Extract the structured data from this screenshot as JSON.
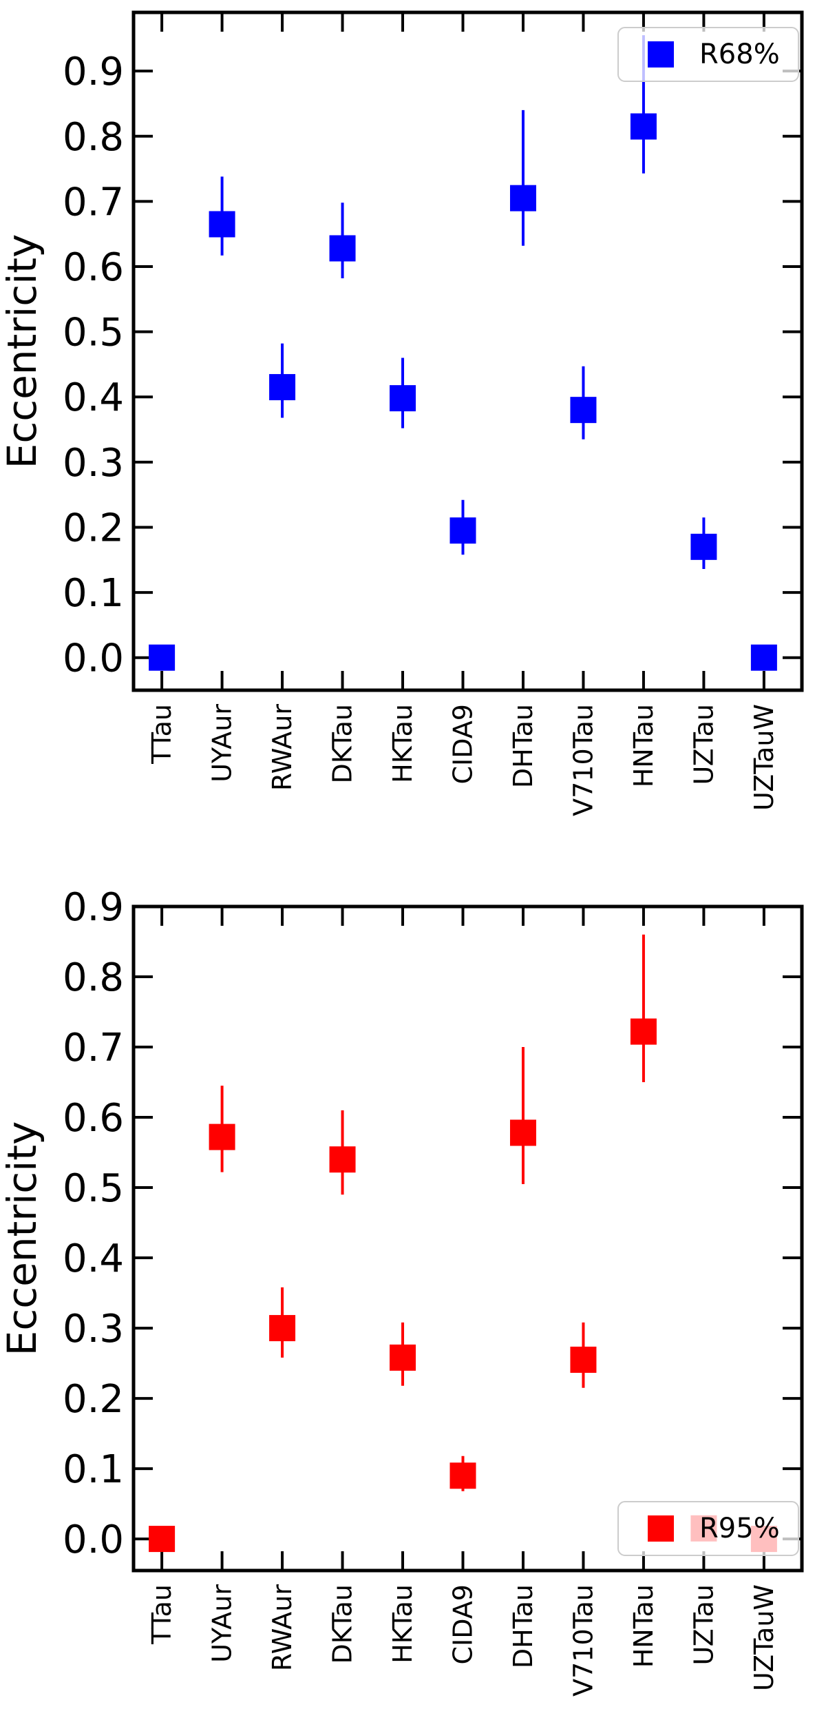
{
  "chart_data": [
    {
      "type": "scatter",
      "ylabel": "Eccentricity",
      "xlabel": "",
      "categories": [
        "TTau",
        "UYAur",
        "RWAur",
        "DKTau",
        "HKTau",
        "CIDA9",
        "DHTau",
        "V710Tau",
        "HNTau",
        "UZTau",
        "UZTauW"
      ],
      "ylim": [
        -0.05,
        0.99
      ],
      "yticks": [
        "0.0",
        "0.1",
        "0.2",
        "0.3",
        "0.4",
        "0.5",
        "0.6",
        "0.7",
        "0.8",
        "0.9"
      ],
      "grid": false,
      "legend_position": "top-right",
      "series": [
        {
          "name": "R68%",
          "color": "#0000ff",
          "marker": "square",
          "values": [
            0.0,
            0.665,
            0.415,
            0.628,
            0.398,
            0.195,
            0.705,
            0.38,
            0.815,
            0.17,
            0.0
          ],
          "err_low": [
            0.0,
            0.617,
            0.368,
            0.582,
            0.352,
            0.158,
            0.632,
            0.335,
            0.743,
            0.136,
            0.0
          ],
          "err_high": [
            0.0,
            0.738,
            0.482,
            0.698,
            0.46,
            0.242,
            0.84,
            0.447,
            0.955,
            0.215,
            0.0
          ]
        }
      ]
    },
    {
      "type": "scatter",
      "ylabel": "Eccentricity",
      "xlabel": "",
      "categories": [
        "TTau",
        "UYAur",
        "RWAur",
        "DKTau",
        "HKTau",
        "CIDA9",
        "DHTau",
        "V710Tau",
        "HNTau",
        "UZTau",
        "UZTauW"
      ],
      "ylim": [
        -0.045,
        0.9
      ],
      "yticks": [
        "0.0",
        "0.1",
        "0.2",
        "0.3",
        "0.4",
        "0.5",
        "0.6",
        "0.7",
        "0.8",
        "0.9"
      ],
      "grid": false,
      "legend_position": "bottom-right",
      "series": [
        {
          "name": "R95%",
          "color": "#ff0000",
          "marker": "square",
          "values": [
            0.0,
            0.572,
            0.3,
            0.54,
            0.258,
            0.09,
            0.578,
            0.255,
            0.722,
            0.015,
            0.0
          ],
          "err_low": [
            0.0,
            0.522,
            0.258,
            0.49,
            0.218,
            0.068,
            0.505,
            0.215,
            0.65,
            0.0,
            0.0
          ],
          "err_high": [
            0.0,
            0.645,
            0.358,
            0.61,
            0.308,
            0.118,
            0.7,
            0.308,
            0.86,
            0.03,
            0.0
          ]
        }
      ]
    }
  ]
}
